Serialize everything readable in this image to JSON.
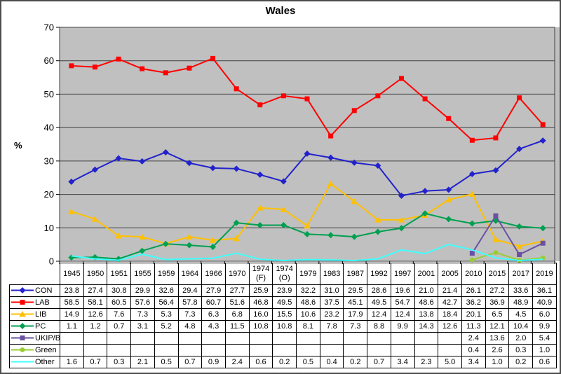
{
  "title": "Wales",
  "ylabel": "%",
  "chart_data": {
    "type": "line",
    "title": "Wales",
    "xlabel": "",
    "ylabel": "%",
    "ylim": [
      0,
      70
    ],
    "ytick_interval": 10,
    "grid": true,
    "legend_position": "table-left",
    "plot_bg": "#c0c0c0",
    "grid_color": "#404040",
    "categories": [
      "1945",
      "1950",
      "1951",
      "1955",
      "1959",
      "1964",
      "1966",
      "1970",
      "1974 (F)",
      "1974 (O)",
      "1979",
      "1983",
      "1987",
      "1992",
      "1997",
      "2001",
      "2005",
      "2010",
      "2015",
      "2017",
      "2019"
    ],
    "series": [
      {
        "name": "CON",
        "color": "#2222cc",
        "marker": "diamond",
        "values": [
          23.8,
          27.4,
          30.8,
          29.9,
          32.6,
          29.4,
          27.9,
          27.7,
          25.9,
          23.9,
          32.2,
          31.0,
          29.5,
          28.6,
          19.6,
          21.0,
          21.4,
          26.1,
          27.2,
          33.6,
          36.1
        ]
      },
      {
        "name": "LAB",
        "color": "#ff0000",
        "marker": "square",
        "values": [
          58.5,
          58.1,
          60.5,
          57.6,
          56.4,
          57.8,
          60.7,
          51.6,
          46.8,
          49.5,
          48.6,
          37.5,
          45.1,
          49.5,
          54.7,
          48.6,
          42.7,
          36.2,
          36.9,
          48.9,
          40.9
        ]
      },
      {
        "name": "LIB",
        "color": "#ffc000",
        "marker": "triangle",
        "values": [
          14.9,
          12.6,
          7.6,
          7.3,
          5.3,
          7.3,
          6.3,
          6.8,
          16.0,
          15.5,
          10.6,
          23.2,
          17.9,
          12.4,
          12.4,
          13.8,
          18.4,
          20.1,
          6.5,
          4.5,
          6.0
        ]
      },
      {
        "name": "PC",
        "color": "#00a050",
        "marker": "diamond",
        "values": [
          1.1,
          1.2,
          0.7,
          3.1,
          5.2,
          4.8,
          4.3,
          11.5,
          10.8,
          10.8,
          8.1,
          7.8,
          7.3,
          8.8,
          9.9,
          14.3,
          12.6,
          11.3,
          12.1,
          10.4,
          9.9
        ]
      },
      {
        "name": "UKIP/Br",
        "color": "#6a51a3",
        "marker": "square",
        "values": [
          null,
          null,
          null,
          null,
          null,
          null,
          null,
          null,
          null,
          null,
          null,
          null,
          null,
          null,
          null,
          null,
          null,
          2.4,
          13.6,
          2.0,
          5.4
        ]
      },
      {
        "name": "Green",
        "color": "#99cc33",
        "marker": "circle",
        "values": [
          null,
          null,
          null,
          null,
          null,
          null,
          null,
          null,
          null,
          null,
          null,
          null,
          null,
          null,
          null,
          null,
          null,
          0.4,
          2.6,
          0.3,
          1.0
        ]
      },
      {
        "name": "Other",
        "color": "#40ffff",
        "marker": "none",
        "values": [
          1.6,
          0.7,
          0.3,
          2.1,
          0.5,
          0.7,
          0.9,
          2.4,
          0.6,
          0.2,
          0.5,
          0.4,
          0.2,
          0.7,
          3.4,
          2.3,
          5.0,
          3.4,
          1.0,
          0.2,
          0.6
        ]
      }
    ]
  }
}
